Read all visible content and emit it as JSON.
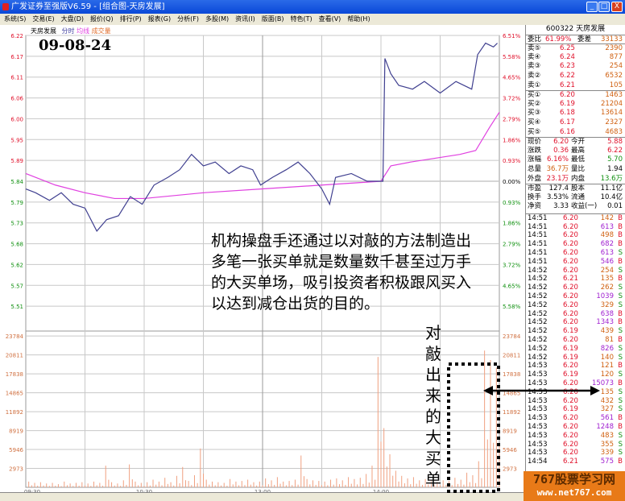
{
  "window": {
    "title": "广发证券至强版V6.59 - [组合图-天房发展]",
    "min": "_",
    "max": "□",
    "close": "X"
  },
  "menu": [
    "系统(S)",
    "交易(E)",
    "大盘(D)",
    "报价(Q)",
    "排行(P)",
    "报表(G)",
    "分析(F)",
    "多股(M)",
    "资讯(I)",
    "版面(B)",
    "特色(T)",
    "查看(V)",
    "帮助(H)"
  ],
  "chart_header": {
    "name": "天房发展",
    "fenshi": "分时",
    "avg": "均线",
    "vol": "成交量"
  },
  "date_label": "09-08-24",
  "colors": {
    "price": "#404090",
    "avg": "#e040e0",
    "volume": "#f0a080",
    "up": "#e0102a",
    "down": "#109010",
    "grid": "#c8c8c8"
  },
  "chart_data": {
    "type": "line",
    "price_ticks": [
      "6.22",
      "6.17",
      "6.11",
      "6.06",
      "6.00",
      "5.95",
      "5.89",
      "5.84",
      "5.79",
      "5.73",
      "5.68",
      "5.62",
      "5.57",
      "5.51"
    ],
    "pct_ticks": [
      "6.51%",
      "5.58%",
      "4.65%",
      "3.72%",
      "2.79%",
      "1.86%",
      "0.93%",
      "0.00%",
      "0.93%",
      "1.86%",
      "2.79%",
      "3.72%",
      "4.65%",
      "5.58%"
    ],
    "vol_ticks": [
      "23784",
      "20811",
      "17838",
      "14865",
      "11892",
      "8919",
      "5946",
      "2973"
    ],
    "time_ticks": [
      "09:30",
      "10:30",
      "13:00",
      "14:00"
    ],
    "prev_close": 5.84,
    "ylim": [
      5.46,
      6.22
    ],
    "vol_max": 23784,
    "price": [
      [
        "09:30",
        5.82
      ],
      [
        "09:35",
        5.81
      ],
      [
        "09:42",
        5.79
      ],
      [
        "09:48",
        5.81
      ],
      [
        "09:54",
        5.78
      ],
      [
        "10:00",
        5.77
      ],
      [
        "10:06",
        5.71
      ],
      [
        "10:11",
        5.74
      ],
      [
        "10:17",
        5.75
      ],
      [
        "10:23",
        5.8
      ],
      [
        "10:29",
        5.78
      ],
      [
        "10:35",
        5.83
      ],
      [
        "10:42",
        5.85
      ],
      [
        "10:48",
        5.87
      ],
      [
        "10:54",
        5.91
      ],
      [
        "11:00",
        5.88
      ],
      [
        "11:06",
        5.89
      ],
      [
        "11:13",
        5.86
      ],
      [
        "11:19",
        5.88
      ],
      [
        "11:25",
        5.87
      ],
      [
        "11:29",
        5.83
      ],
      [
        "13:05",
        5.85
      ],
      [
        "13:12",
        5.87
      ],
      [
        "13:18",
        5.89
      ],
      [
        "13:24",
        5.86
      ],
      [
        "13:30",
        5.82
      ],
      [
        "13:34",
        5.78
      ],
      [
        "13:37",
        5.85
      ],
      [
        "13:45",
        5.86
      ],
      [
        "13:53",
        5.84
      ],
      [
        "14:01",
        5.84
      ],
      [
        "14:02",
        6.16
      ],
      [
        "14:05",
        6.12
      ],
      [
        "14:09",
        6.09
      ],
      [
        "14:16",
        6.08
      ],
      [
        "14:22",
        6.1
      ],
      [
        "14:30",
        6.07
      ],
      [
        "14:38",
        6.1
      ],
      [
        "14:46",
        6.08
      ],
      [
        "14:49",
        6.17
      ],
      [
        "14:53",
        6.2
      ],
      [
        "14:57",
        6.19
      ],
      [
        "14:59",
        6.2
      ]
    ],
    "avg": [
      [
        "09:30",
        5.86
      ],
      [
        "09:45",
        5.83
      ],
      [
        "10:00",
        5.81
      ],
      [
        "10:15",
        5.795
      ],
      [
        "10:30",
        5.795
      ],
      [
        "11:00",
        5.81
      ],
      [
        "11:30",
        5.82
      ],
      [
        "13:30",
        5.83
      ],
      [
        "14:00",
        5.84
      ],
      [
        "14:05",
        5.88
      ],
      [
        "14:15",
        5.89
      ],
      [
        "14:40",
        5.91
      ],
      [
        "14:48",
        5.92
      ],
      [
        "14:55",
        5.98
      ],
      [
        "15:00",
        6.02
      ]
    ],
    "volume": [
      900,
      700,
      800,
      600,
      700,
      500,
      900,
      600,
      700,
      800,
      600,
      900,
      700,
      3400,
      800,
      600,
      1100,
      3600,
      900,
      700,
      800,
      1200,
      900,
      1500,
      800,
      1800,
      3200,
      1000,
      1900,
      6100,
      1200,
      900,
      800,
      700,
      1300,
      900,
      1000,
      1200,
      800,
      900,
      1400,
      1100,
      1600,
      900,
      1000,
      1200,
      5000,
      1300,
      1100,
      1000,
      900,
      1200,
      1400,
      1100,
      1600,
      1300,
      1500,
      2100,
      3400,
      20500,
      9300,
      5200,
      2600,
      1800,
      1400,
      1600,
      1100,
      1300,
      1200,
      900,
      1100,
      1000,
      1500,
      1200,
      2300,
      1900,
      4100,
      21500,
      20000,
      18800
    ]
  },
  "quote": {
    "code_name": "600322 天房发展",
    "weibi": {
      "l": "委比",
      "v": "61.99%",
      "l2": "委差",
      "v2": "33133"
    },
    "asks": [
      [
        "卖⑤",
        "6.25",
        "2390"
      ],
      [
        "卖④",
        "6.24",
        "877"
      ],
      [
        "卖③",
        "6.23",
        "254"
      ],
      [
        "卖②",
        "6.22",
        "6532"
      ],
      [
        "卖①",
        "6.21",
        "105"
      ]
    ],
    "bids": [
      [
        "买①",
        "6.20",
        "1463"
      ],
      [
        "买②",
        "6.19",
        "21204"
      ],
      [
        "买③",
        "6.18",
        "13614"
      ],
      [
        "买④",
        "6.17",
        "2327"
      ],
      [
        "买⑤",
        "6.16",
        "4683"
      ]
    ],
    "stats": [
      [
        "现价",
        "6.20",
        "今开",
        "5.88"
      ],
      [
        "涨跌",
        "0.36",
        "最高",
        "6.22"
      ],
      [
        "涨幅",
        "6.16%",
        "最低",
        "5.70"
      ],
      [
        "总量",
        "36.7万",
        "量比",
        "1.94"
      ],
      [
        "外盘",
        "23.1万",
        "内盘",
        "13.6万"
      ]
    ],
    "stats2": [
      [
        "市盈",
        "127.4",
        "股本",
        "11.1亿"
      ],
      [
        "换手",
        "3.53%",
        "流通",
        "10.4亿"
      ],
      [
        "净资",
        "3.33",
        "收益(一)",
        "0.01"
      ]
    ],
    "trades": [
      [
        "14:51",
        "6.20",
        "142",
        "B"
      ],
      [
        "14:51",
        "6.20",
        "613",
        "B"
      ],
      [
        "14:51",
        "6.20",
        "498",
        "B"
      ],
      [
        "14:51",
        "6.20",
        "682",
        "B"
      ],
      [
        "14:51",
        "6.20",
        "613",
        "S"
      ],
      [
        "14:51",
        "6.20",
        "546",
        "B"
      ],
      [
        "14:52",
        "6.20",
        "254",
        "S"
      ],
      [
        "14:52",
        "6.21",
        "135",
        "B"
      ],
      [
        "14:52",
        "6.20",
        "262",
        "S"
      ],
      [
        "14:52",
        "6.20",
        "1039",
        "S"
      ],
      [
        "14:52",
        "6.20",
        "329",
        "S"
      ],
      [
        "14:52",
        "6.20",
        "638",
        "B"
      ],
      [
        "14:52",
        "6.20",
        "1343",
        "B"
      ],
      [
        "14:52",
        "6.19",
        "439",
        "S"
      ],
      [
        "14:52",
        "6.20",
        "81",
        "B"
      ],
      [
        "14:52",
        "6.19",
        "826",
        "S"
      ],
      [
        "14:52",
        "6.19",
        "140",
        "S"
      ],
      [
        "14:53",
        "6.20",
        "121",
        "B"
      ],
      [
        "14:53",
        "6.19",
        "120",
        "S"
      ],
      [
        "14:53",
        "6.20",
        "15073",
        "B"
      ],
      [
        "14:53",
        "6.20",
        "135",
        "S"
      ],
      [
        "14:53",
        "6.20",
        "432",
        "S"
      ],
      [
        "14:53",
        "6.19",
        "327",
        "S"
      ],
      [
        "14:53",
        "6.20",
        "561",
        "B"
      ],
      [
        "14:53",
        "6.20",
        "1248",
        "B"
      ],
      [
        "14:53",
        "6.20",
        "483",
        "S"
      ],
      [
        "14:53",
        "6.20",
        "355",
        "S"
      ],
      [
        "14:53",
        "6.20",
        "339",
        "S"
      ],
      [
        "14:54",
        "6.21",
        "575",
        "B"
      ]
    ]
  },
  "annotation": {
    "main": "机构操盘手还通过以对敲的方法制造出多笔一张买单就是数量数千甚至过万手的大买单场，吸引投资者积极跟风买入以达到减仓出货的目的。",
    "vertical": "对敲出来的大买单"
  },
  "watermark": {
    "line1": "767股票学习网",
    "line2": "www.net767.com"
  }
}
